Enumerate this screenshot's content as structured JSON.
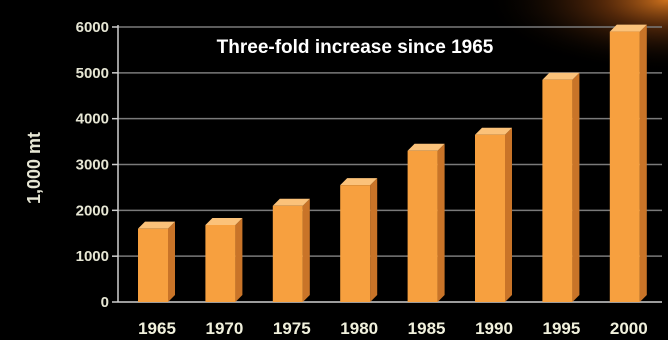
{
  "chart_data": {
    "type": "bar",
    "title": "",
    "annotation": "Three-fold increase since 1965",
    "xlabel": "",
    "ylabel": "1,000 mt",
    "categories": [
      "1965",
      "1970",
      "1975",
      "1980",
      "1985",
      "1990",
      "1995",
      "2000"
    ],
    "values": [
      1600,
      1680,
      2100,
      2550,
      3300,
      3650,
      4850,
      5900
    ],
    "ylim": [
      0,
      6000
    ],
    "yticks": [
      "0",
      "1000",
      "2000",
      "3000",
      "4000",
      "5000",
      "6000"
    ],
    "grid": true,
    "legend": "none",
    "colors": {
      "bar_front": "#f7a03f",
      "bar_side": "#c97428",
      "bar_top": "#fbc27a",
      "grid": "#7a7a7a",
      "axis": "#cfcfcf",
      "background": "#000000",
      "glow": "#d9781f"
    }
  }
}
